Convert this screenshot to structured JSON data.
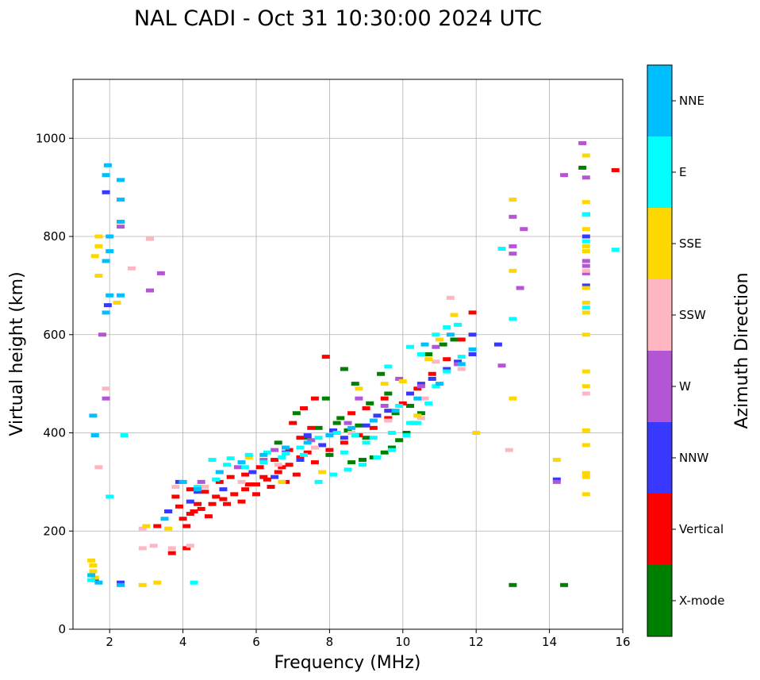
{
  "chart_data": {
    "type": "scatter",
    "title": "NAL CADI - Oct 31 10:30:00 2024 UTC",
    "xlabel": "Frequency (MHz)",
    "ylabel": "Virtual height (km)",
    "xlim": [
      1,
      16
    ],
    "ylim": [
      0,
      1120
    ],
    "xticks": [
      2,
      4,
      6,
      8,
      10,
      12,
      14,
      16
    ],
    "yticks": [
      0,
      200,
      400,
      600,
      800,
      1000
    ],
    "grid": true,
    "colorbar": {
      "label": "Azimuth Direction",
      "placement": "right",
      "categories": [
        {
          "name": "X-mode",
          "color": "#008000"
        },
        {
          "name": "Vertical",
          "color": "#ff0000"
        },
        {
          "name": "NNW",
          "color": "#3838ff"
        },
        {
          "name": "W",
          "color": "#b455d6"
        },
        {
          "name": "SSW",
          "color": "#ffb6c1"
        },
        {
          "name": "SSE",
          "color": "#ffd700"
        },
        {
          "name": "E",
          "color": "#00ffff"
        },
        {
          "name": "NNE",
          "color": "#00bfff"
        }
      ]
    },
    "series": [
      {
        "name": "X-mode",
        "points": [
          [
            13.0,
            90
          ],
          [
            14.4,
            90
          ],
          [
            8.6,
            340
          ],
          [
            8.9,
            345
          ],
          [
            9.2,
            350
          ],
          [
            9.5,
            360
          ],
          [
            9.7,
            370
          ],
          [
            9.9,
            385
          ],
          [
            10.1,
            400
          ],
          [
            10.3,
            420
          ],
          [
            10.5,
            440
          ],
          [
            8.2,
            420
          ],
          [
            8.8,
            415
          ],
          [
            7.9,
            470
          ],
          [
            8.3,
            430
          ],
          [
            9.1,
            460
          ],
          [
            9.6,
            480
          ],
          [
            7.4,
            390
          ],
          [
            7.7,
            410
          ],
          [
            8.5,
            405
          ],
          [
            8.7,
            500
          ],
          [
            9.8,
            440
          ],
          [
            10.7,
            560
          ],
          [
            11.1,
            580
          ],
          [
            11.4,
            590
          ],
          [
            6.6,
            380
          ],
          [
            7.1,
            440
          ],
          [
            14.9,
            940
          ],
          [
            8.4,
            530
          ],
          [
            9.4,
            520
          ],
          [
            9.0,
            390
          ],
          [
            10.2,
            455
          ],
          [
            8.0,
            355
          ]
        ]
      },
      {
        "name": "Vertical",
        "points": [
          [
            3.7,
            155
          ],
          [
            4.1,
            165
          ],
          [
            3.3,
            210
          ],
          [
            3.9,
            250
          ],
          [
            4.2,
            235
          ],
          [
            4.5,
            245
          ],
          [
            4.8,
            255
          ],
          [
            5.1,
            265
          ],
          [
            5.4,
            275
          ],
          [
            5.7,
            285
          ],
          [
            6.0,
            295
          ],
          [
            6.3,
            305
          ],
          [
            6.6,
            320
          ],
          [
            6.9,
            335
          ],
          [
            7.2,
            350
          ],
          [
            3.8,
            270
          ],
          [
            4.2,
            285
          ],
          [
            4.6,
            280
          ],
          [
            5.0,
            300
          ],
          [
            5.3,
            310
          ],
          [
            5.7,
            315
          ],
          [
            6.1,
            330
          ],
          [
            6.5,
            345
          ],
          [
            6.9,
            365
          ],
          [
            7.2,
            390
          ],
          [
            7.5,
            410
          ],
          [
            7.0,
            420
          ],
          [
            7.3,
            450
          ],
          [
            7.6,
            470
          ],
          [
            7.9,
            555
          ],
          [
            4.0,
            225
          ],
          [
            4.3,
            240
          ],
          [
            4.7,
            230
          ],
          [
            5.2,
            255
          ],
          [
            5.6,
            260
          ],
          [
            6.0,
            275
          ],
          [
            6.4,
            290
          ],
          [
            6.8,
            300
          ],
          [
            7.1,
            315
          ],
          [
            7.6,
            340
          ],
          [
            8.0,
            365
          ],
          [
            8.4,
            380
          ],
          [
            8.8,
            395
          ],
          [
            9.2,
            410
          ],
          [
            9.6,
            430
          ],
          [
            10.0,
            460
          ],
          [
            10.4,
            490
          ],
          [
            10.8,
            520
          ],
          [
            11.2,
            550
          ],
          [
            11.6,
            590
          ],
          [
            11.9,
            645
          ],
          [
            4.4,
            255
          ],
          [
            4.9,
            270
          ],
          [
            5.8,
            295
          ],
          [
            6.2,
            310
          ],
          [
            6.7,
            330
          ],
          [
            7.4,
            360
          ],
          [
            15.8,
            935
          ],
          [
            9.0,
            450
          ],
          [
            9.5,
            470
          ],
          [
            8.6,
            440
          ],
          [
            3.6,
            240
          ],
          [
            4.1,
            210
          ]
        ]
      },
      {
        "name": "NNW",
        "points": [
          [
            1.95,
            660
          ],
          [
            1.9,
            890
          ],
          [
            14.2,
            305
          ],
          [
            15.0,
            845
          ],
          [
            15.0,
            800
          ],
          [
            11.9,
            560
          ],
          [
            12.6,
            580
          ],
          [
            3.6,
            240
          ],
          [
            3.9,
            300
          ],
          [
            4.4,
            280
          ],
          [
            5.1,
            285
          ],
          [
            5.9,
            320
          ],
          [
            6.5,
            310
          ],
          [
            7.2,
            345
          ],
          [
            7.8,
            375
          ],
          [
            8.4,
            390
          ],
          [
            9.0,
            415
          ],
          [
            9.6,
            445
          ],
          [
            10.2,
            480
          ],
          [
            10.8,
            510
          ],
          [
            11.5,
            545
          ],
          [
            1.6,
            100
          ],
          [
            2.3,
            95
          ],
          [
            4.2,
            260
          ],
          [
            6.8,
            360
          ],
          [
            7.4,
            395
          ],
          [
            8.1,
            405
          ],
          [
            9.3,
            435
          ],
          [
            10.5,
            500
          ],
          [
            11.2,
            530
          ],
          [
            15.0,
            700
          ],
          [
            11.9,
            600
          ]
        ]
      },
      {
        "name": "W",
        "points": [
          [
            14.9,
            990
          ],
          [
            14.4,
            925
          ],
          [
            15.0,
            920
          ],
          [
            13.0,
            840
          ],
          [
            13.3,
            815
          ],
          [
            13.0,
            780
          ],
          [
            13.0,
            765
          ],
          [
            13.2,
            695
          ],
          [
            12.7,
            537
          ],
          [
            14.2,
            300
          ],
          [
            15.0,
            750
          ],
          [
            15.0,
            740
          ],
          [
            15.0,
            725
          ],
          [
            3.1,
            690
          ],
          [
            2.3,
            820
          ],
          [
            1.9,
            470
          ],
          [
            1.8,
            600
          ],
          [
            3.4,
            725
          ],
          [
            4.5,
            300
          ],
          [
            5.5,
            330
          ],
          [
            6.5,
            365
          ],
          [
            7.5,
            385
          ],
          [
            8.5,
            420
          ],
          [
            9.5,
            455
          ],
          [
            10.5,
            495
          ],
          [
            11.5,
            540
          ],
          [
            10.9,
            575
          ],
          [
            6.2,
            345
          ],
          [
            8.8,
            470
          ],
          [
            9.9,
            510
          ]
        ]
      },
      {
        "name": "SSW",
        "points": [
          [
            12.9,
            365
          ],
          [
            15.0,
            480
          ],
          [
            10.5,
            430
          ],
          [
            11.3,
            675
          ],
          [
            15.0,
            730
          ],
          [
            2.9,
            165
          ],
          [
            3.7,
            165
          ],
          [
            3.2,
            170
          ],
          [
            4.2,
            170
          ],
          [
            3.1,
            795
          ],
          [
            2.6,
            735
          ],
          [
            1.9,
            490
          ],
          [
            1.7,
            330
          ],
          [
            4.6,
            290
          ],
          [
            5.6,
            300
          ],
          [
            6.6,
            335
          ],
          [
            7.6,
            370
          ],
          [
            8.6,
            400
          ],
          [
            9.6,
            425
          ],
          [
            10.6,
            470
          ],
          [
            11.6,
            530
          ],
          [
            10.9,
            545
          ],
          [
            3.8,
            290
          ],
          [
            2.9,
            205
          ]
        ]
      },
      {
        "name": "SSE",
        "points": [
          [
            1.5,
            140
          ],
          [
            1.55,
            130
          ],
          [
            1.55,
            118
          ],
          [
            1.6,
            105
          ],
          [
            1.7,
            800
          ],
          [
            1.7,
            780
          ],
          [
            1.6,
            760
          ],
          [
            1.7,
            720
          ],
          [
            2.2,
            665
          ],
          [
            13.0,
            875
          ],
          [
            13.0,
            730
          ],
          [
            13.0,
            470
          ],
          [
            14.2,
            345
          ],
          [
            15.0,
            965
          ],
          [
            15.0,
            870
          ],
          [
            15.0,
            780
          ],
          [
            15.0,
            770
          ],
          [
            15.0,
            815
          ],
          [
            15.0,
            695
          ],
          [
            15.0,
            665
          ],
          [
            15.0,
            645
          ],
          [
            15.0,
            600
          ],
          [
            15.0,
            525
          ],
          [
            15.0,
            495
          ],
          [
            15.0,
            405
          ],
          [
            15.0,
            375
          ],
          [
            15.0,
            318
          ],
          [
            15.0,
            310
          ],
          [
            15.0,
            275
          ],
          [
            12.0,
            400
          ],
          [
            10.7,
            550
          ],
          [
            10.0,
            505
          ],
          [
            11.0,
            590
          ],
          [
            11.4,
            640
          ],
          [
            9.5,
            500
          ],
          [
            8.8,
            490
          ],
          [
            10.4,
            435
          ],
          [
            2.9,
            90
          ],
          [
            3.3,
            95
          ],
          [
            3.0,
            210
          ],
          [
            3.6,
            205
          ],
          [
            5.8,
            350
          ],
          [
            6.7,
            300
          ],
          [
            7.8,
            320
          ]
        ]
      },
      {
        "name": "E",
        "points": [
          [
            12.7,
            775
          ],
          [
            13.0,
            632
          ],
          [
            15.8,
            773
          ],
          [
            15.0,
            655
          ],
          [
            15.0,
            845
          ],
          [
            15.0,
            790
          ],
          [
            4.8,
            345
          ],
          [
            5.3,
            348
          ],
          [
            5.8,
            355
          ],
          [
            6.3,
            360
          ],
          [
            6.8,
            358
          ],
          [
            7.3,
            355
          ],
          [
            7.7,
            300
          ],
          [
            8.1,
            315
          ],
          [
            8.5,
            325
          ],
          [
            8.9,
            335
          ],
          [
            9.3,
            350
          ],
          [
            9.7,
            365
          ],
          [
            10.1,
            395
          ],
          [
            10.4,
            420
          ],
          [
            10.7,
            460
          ],
          [
            10.9,
            495
          ],
          [
            11.2,
            525
          ],
          [
            11.6,
            555
          ],
          [
            10.5,
            560
          ],
          [
            10.9,
            600
          ],
          [
            11.2,
            615
          ],
          [
            11.5,
            620
          ],
          [
            9.6,
            535
          ],
          [
            10.2,
            575
          ],
          [
            5.2,
            335
          ],
          [
            5.7,
            330
          ],
          [
            6.2,
            340
          ],
          [
            6.7,
            350
          ],
          [
            7.2,
            370
          ],
          [
            7.7,
            390
          ],
          [
            8.2,
            400
          ],
          [
            8.7,
            395
          ],
          [
            9.2,
            390
          ],
          [
            9.7,
            400
          ],
          [
            10.2,
            420
          ],
          [
            4.4,
            290
          ],
          [
            4.9,
            305
          ],
          [
            2.0,
            270
          ],
          [
            2.4,
            395
          ],
          [
            1.6,
            395
          ],
          [
            1.5,
            100
          ],
          [
            4.3,
            95
          ],
          [
            9.0,
            380
          ],
          [
            9.9,
            455
          ],
          [
            8.4,
            360
          ]
        ]
      },
      {
        "name": "NNE",
        "points": [
          [
            1.95,
            945
          ],
          [
            1.9,
            925
          ],
          [
            2.3,
            915
          ],
          [
            2.3,
            875
          ],
          [
            2.3,
            830
          ],
          [
            2.0,
            800
          ],
          [
            2.0,
            770
          ],
          [
            1.9,
            750
          ],
          [
            2.0,
            680
          ],
          [
            1.9,
            645
          ],
          [
            2.3,
            680
          ],
          [
            1.55,
            435
          ],
          [
            1.6,
            395
          ],
          [
            1.5,
            110
          ],
          [
            1.7,
            95
          ],
          [
            2.3,
            90
          ],
          [
            4.0,
            300
          ],
          [
            4.4,
            285
          ],
          [
            5.0,
            320
          ],
          [
            5.6,
            340
          ],
          [
            6.2,
            355
          ],
          [
            6.8,
            370
          ],
          [
            7.4,
            380
          ],
          [
            8.0,
            395
          ],
          [
            8.6,
            410
          ],
          [
            9.2,
            425
          ],
          [
            9.8,
            445
          ],
          [
            10.4,
            470
          ],
          [
            11.0,
            500
          ],
          [
            11.6,
            540
          ],
          [
            10.6,
            580
          ],
          [
            11.3,
            600
          ],
          [
            11.9,
            570
          ],
          [
            3.5,
            225
          ]
        ]
      }
    ]
  }
}
